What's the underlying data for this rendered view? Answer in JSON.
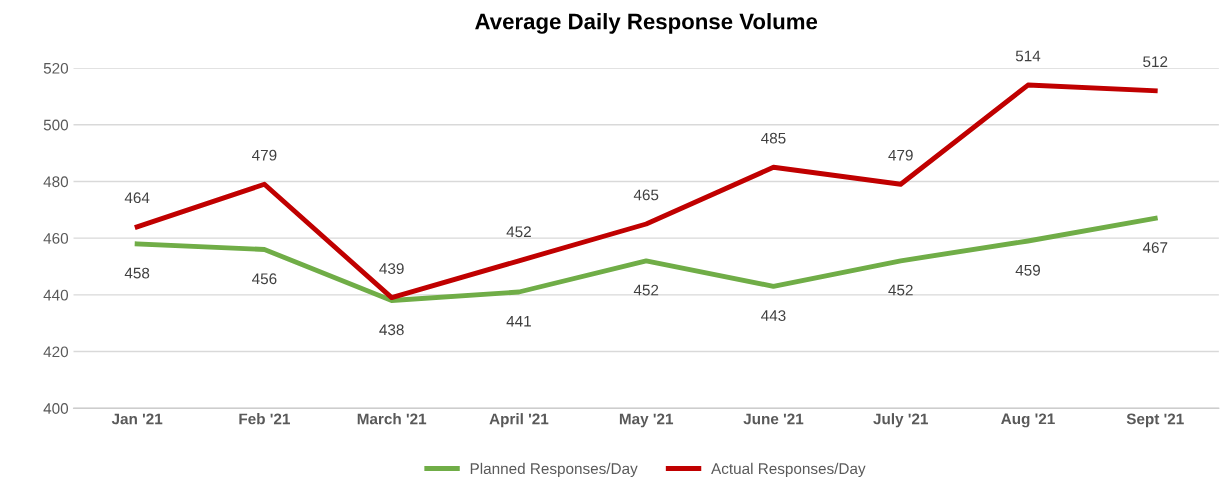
{
  "chart_data": {
    "type": "line",
    "title": "Average Daily Response Volume",
    "categories": [
      "Jan '21",
      "Feb '21",
      "March '21",
      "April '21",
      "May '21",
      "June '21",
      "July '21",
      "Aug '21",
      "Sept '21"
    ],
    "series": [
      {
        "name": "Planned Responses/Day",
        "color": "#70ad47",
        "values": [
          458,
          456,
          438,
          441,
          452,
          443,
          452,
          459,
          467
        ]
      },
      {
        "name": "Actual Responses/Day",
        "color": "#c00000",
        "values": [
          464,
          479,
          439,
          452,
          465,
          485,
          479,
          514,
          512
        ]
      }
    ],
    "ylim": [
      400,
      520
    ],
    "yticks": [
      400,
      420,
      440,
      460,
      480,
      500,
      520
    ],
    "grid": "y",
    "legend": "bottom",
    "data_labels": true,
    "marker": "none",
    "line_style": "solid"
  }
}
